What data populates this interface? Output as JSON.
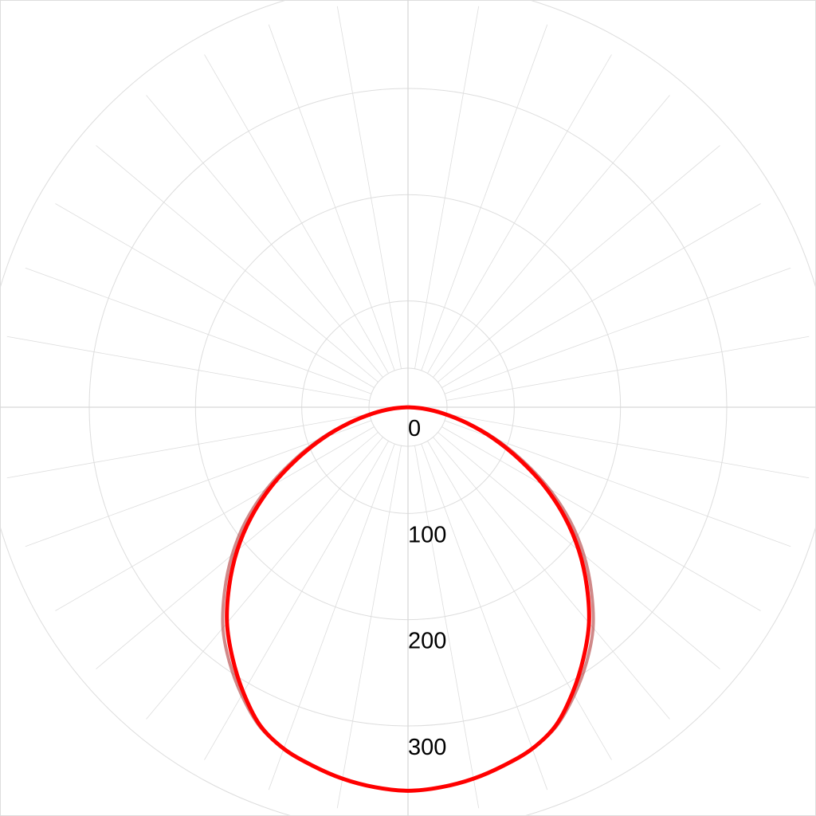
{
  "chart_data": {
    "type": "polar",
    "title": "",
    "radial_ticks": [
      0,
      100,
      200,
      300
    ],
    "radial_gridlines": [
      100,
      200,
      300,
      400
    ],
    "rmax": 400,
    "angle_step_deg": 10,
    "zero_direction": "down",
    "grid": true,
    "grid_color": "#dddddd",
    "series": [
      {
        "color": "#b03a3a",
        "opacity": 0.6,
        "angles_deg": [
          0,
          5,
          10,
          15,
          20,
          25,
          30,
          35,
          40,
          45,
          50,
          55,
          60,
          65,
          70,
          75,
          80,
          85,
          90
        ],
        "values": [
          361,
          359,
          355,
          349,
          342,
          331,
          313,
          293,
          271,
          244,
          216,
          186,
          153,
          119,
          88,
          59,
          34,
          15,
          0
        ],
        "symmetric": true
      },
      {
        "color": "#ff0000",
        "opacity": 1,
        "angles_deg": [
          0,
          5,
          10,
          15,
          20,
          25,
          30,
          35,
          40,
          45,
          50,
          55,
          60,
          65,
          70,
          75,
          80,
          85,
          90
        ],
        "values": [
          361,
          359,
          355,
          349,
          342,
          330,
          310,
          288,
          265,
          238,
          210,
          180,
          148,
          115,
          85,
          57,
          33,
          14,
          0
        ],
        "symmetric": true
      }
    ]
  }
}
